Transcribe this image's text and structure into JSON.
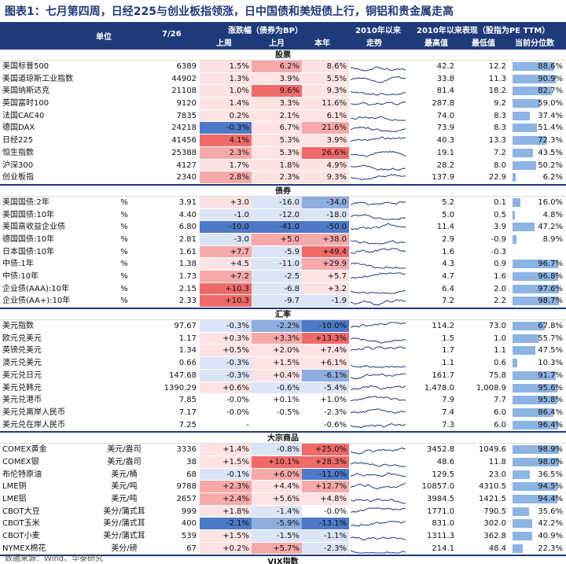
{
  "title": "图表1：七月第四周，日经225与创业板指领涨，日中国债和美短债上行，铜铝和贵金属走高",
  "header": {
    "unit": "单位",
    "date": "7/26",
    "change_group": "涨跌幅（债券为BP）",
    "week": "上周",
    "month": "上月",
    "ytd": "本年",
    "trend_group": "2010年以来",
    "trend": "走势",
    "perf_group": "2010年以来表现（股指为PE TTM）",
    "max": "最高值",
    "min": "最低值",
    "pct": "当前分位数"
  },
  "colors": {
    "header_bg": "#1f3a7a",
    "up_strong": "#f06a6a",
    "up_mid": "#f7a9a9",
    "up_light": "#fde3e3",
    "down_strong": "#4e79c7",
    "down_mid": "#8fadde",
    "down_light": "#dbe5f6",
    "pct_bar": "#8db4e2"
  },
  "sections": [
    {
      "name": "股票",
      "rows": [
        {
          "name": "美国标普500",
          "unit": "",
          "value": "6389",
          "week": "1.5%",
          "month": "6.2%",
          "ytd": "8.6%",
          "wc": "up_light",
          "mc": "up_mid",
          "yc": "up_light",
          "max": "42.2",
          "min": "12.2",
          "pct": "88.6%",
          "pv": 0.886
        },
        {
          "name": "美国道琼斯工业指数",
          "unit": "",
          "value": "44902",
          "week": "1.3%",
          "month": "3.9%",
          "ytd": "5.5%",
          "wc": "up_light",
          "mc": "up_light",
          "yc": "up_light",
          "max": "33.8",
          "min": "11.3",
          "pct": "90.9%",
          "pv": 0.909
        },
        {
          "name": "美国纳斯达克",
          "unit": "",
          "value": "21108",
          "week": "1.0%",
          "month": "9.6%",
          "ytd": "9.3%",
          "wc": "up_light",
          "mc": "up_strong",
          "yc": "up_light",
          "max": "81.4",
          "min": "18.2",
          "pct": "82.7%",
          "pv": 0.827
        },
        {
          "name": "英国富时100",
          "unit": "",
          "value": "9120",
          "week": "1.4%",
          "month": "3.3%",
          "ytd": "11.6%",
          "wc": "up_light",
          "mc": "up_light",
          "yc": "up_light",
          "max": "287.8",
          "min": "9.2",
          "pct": "59.0%",
          "pv": 0.59
        },
        {
          "name": "法国CAC40",
          "unit": "",
          "value": "7835",
          "week": "0.2%",
          "month": "2.1%",
          "ytd": "6.1%",
          "wc": "up_light",
          "mc": "up_light",
          "yc": "up_light",
          "max": "74.0",
          "min": "8.3",
          "pct": "37.4%",
          "pv": 0.374
        },
        {
          "name": "德国DAX",
          "unit": "",
          "value": "24218",
          "week": "-0.3%",
          "month": "6.7%",
          "ytd": "21.6%",
          "wc": "down_strong",
          "mc": "up_light",
          "yc": "up_mid",
          "max": "73.9",
          "min": "8.3",
          "pct": "51.4%",
          "pv": 0.514
        },
        {
          "name": "日经225",
          "unit": "",
          "value": "41456",
          "week": "4.1%",
          "month": "5.3%",
          "ytd": "3.9%",
          "wc": "up_strong",
          "mc": "up_light",
          "yc": "up_light",
          "max": "40.3",
          "min": "13.3",
          "pct": "72.3%",
          "pv": 0.723
        },
        {
          "name": "恒生指数",
          "unit": "",
          "value": "25388",
          "week": "2.3%",
          "month": "5.3%",
          "ytd": "26.6%",
          "wc": "up_mid",
          "mc": "up_light",
          "yc": "up_strong",
          "max": "19.1",
          "min": "7.2",
          "pct": "43.5%",
          "pv": 0.435
        },
        {
          "name": "沪深300",
          "unit": "",
          "value": "4127",
          "week": "1.7%",
          "month": "1.8%",
          "ytd": "4.9%",
          "wc": "up_light",
          "mc": "up_light",
          "yc": "up_light",
          "max": "28.2",
          "min": "8.0",
          "pct": "50.2%",
          "pv": 0.502
        },
        {
          "name": "创业板指",
          "unit": "",
          "value": "2340",
          "week": "2.8%",
          "month": "2.3%",
          "ytd": "9.3%",
          "wc": "up_mid",
          "mc": "up_light",
          "yc": "up_light",
          "max": "137.9",
          "min": "22.9",
          "pct": "6.2%",
          "pv": 0.062
        }
      ]
    },
    {
      "name": "债券",
      "rows": [
        {
          "name": "美国国债:2年",
          "unit": "%",
          "value": "3.91",
          "week": "+3.0",
          "month": "-16.0",
          "ytd": "-34.0",
          "wc": "up_light",
          "mc": "down_light",
          "yc": "down_mid",
          "max": "5.2",
          "min": "0.1",
          "pct": "16.0%",
          "pv": 0.16
        },
        {
          "name": "美国国债:10年",
          "unit": "%",
          "value": "4.40",
          "week": "-1.0",
          "month": "-12.0",
          "ytd": "-18.0",
          "wc": "down_light",
          "mc": "down_light",
          "yc": "down_light",
          "max": "5.0",
          "min": "0.5",
          "pct": "4.8%",
          "pv": 0.048
        },
        {
          "name": "美国高收益企业债",
          "unit": "%",
          "value": "6.80",
          "week": "-10.0",
          "month": "-41.0",
          "ytd": "-50.0",
          "wc": "down_strong",
          "mc": "down_strong",
          "yc": "down_strong",
          "max": "11.4",
          "min": "3.9",
          "pct": "47.2%",
          "pv": 0.472
        },
        {
          "name": "德国国债:10年",
          "unit": "%",
          "value": "2.81",
          "week": "-3.0",
          "month": "+5.0",
          "ytd": "+38.0",
          "wc": "down_light",
          "mc": "up_mid",
          "yc": "up_mid",
          "max": "2.9",
          "min": "-0.9",
          "pct": "8.9%",
          "pv": 0.089
        },
        {
          "name": "日本国债:10年",
          "unit": "%",
          "value": "1.61",
          "week": "+7.7",
          "month": "-5.9",
          "ytd": "+49.4",
          "wc": "up_mid",
          "mc": "down_light",
          "yc": "up_strong",
          "max": "1.6",
          "min": "-0.3",
          "pct": "",
          "pv": 0
        },
        {
          "name": "中债:1年",
          "unit": "%",
          "value": "1.38",
          "week": "+4.5",
          "month": "-11.0",
          "ytd": "+29.9",
          "wc": "up_light",
          "mc": "down_light",
          "yc": "up_mid",
          "max": "4.3",
          "min": "0.9",
          "pct": "96.7%",
          "pv": 0.967
        },
        {
          "name": "中债:10年",
          "unit": "%",
          "value": "1.73",
          "week": "+7.2",
          "month": "-2.5",
          "ytd": "+5.7",
          "wc": "up_mid",
          "mc": "down_light",
          "yc": "up_light",
          "max": "4.7",
          "min": "1.6",
          "pct": "96.8%",
          "pv": 0.968
        },
        {
          "name": "企业债(AAA):10年",
          "unit": "%",
          "value": "2.15",
          "week": "+10.3",
          "month": "-6.8",
          "ytd": "+3.2",
          "wc": "up_strong",
          "mc": "down_light",
          "yc": "up_light",
          "max": "6.4",
          "min": "2.0",
          "pct": "97.6%",
          "pv": 0.976
        },
        {
          "name": "企业债(AA+):10年",
          "unit": "%",
          "value": "2.33",
          "week": "+10.3",
          "month": "-9.7",
          "ytd": "-1.9",
          "wc": "up_strong",
          "mc": "down_light",
          "yc": "down_light",
          "max": "7.2",
          "min": "2.2",
          "pct": "98.7%",
          "pv": 0.987
        }
      ]
    },
    {
      "name": "汇率",
      "rows": [
        {
          "name": "美元指数",
          "unit": "",
          "value": "97.67",
          "week": "-0.3%",
          "month": "-2.2%",
          "ytd": "-10.0%",
          "wc": "down_light",
          "mc": "down_mid",
          "yc": "down_strong",
          "max": "114.2",
          "min": "73.0",
          "pct": "67.8%",
          "pv": 0.678
        },
        {
          "name": "欧元兑美元",
          "unit": "",
          "value": "1.17",
          "week": "+0.3%",
          "month": "+3.3%",
          "ytd": "+13.3%",
          "wc": "up_light",
          "mc": "up_mid",
          "yc": "up_strong",
          "max": "1.5",
          "min": "1.0",
          "pct": "55.7%",
          "pv": 0.557
        },
        {
          "name": "英镑兑美元",
          "unit": "",
          "value": "1.34",
          "week": "+0.5%",
          "month": "+2.0%",
          "ytd": "+7.4%",
          "wc": "up_light",
          "mc": "up_light",
          "yc": "up_light",
          "max": "1.7",
          "min": "1.1",
          "pct": "47.5%",
          "pv": 0.475
        },
        {
          "name": "澳元兑美元",
          "unit": "",
          "value": "0.66",
          "week": "-0.3%",
          "month": "+1.5%",
          "ytd": "+6.1%",
          "wc": "down_light",
          "mc": "up_light",
          "yc": "up_light",
          "max": "1.1",
          "min": "0.6",
          "pct": "10.3%",
          "pv": 0.103
        },
        {
          "name": "美元兑日元",
          "unit": "",
          "value": "147.68",
          "week": "-0.3%",
          "month": "+0.4%",
          "ytd": "-6.1%",
          "wc": "down_light",
          "mc": "up_light",
          "yc": "down_mid",
          "max": "161.7",
          "min": "75.8",
          "pct": "91.7%",
          "pv": 0.917
        },
        {
          "name": "美元兑韩元",
          "unit": "",
          "value": "1390.29",
          "week": "+0.6%",
          "month": "-0.6%",
          "ytd": "-5.4%",
          "wc": "up_light",
          "mc": "down_light",
          "yc": "down_light",
          "max": "1,478.0",
          "min": "1,008.9",
          "pct": "95.6%",
          "pv": 0.956
        },
        {
          "name": "美元兑港币",
          "unit": "",
          "value": "7.85",
          "week": "-0.0%",
          "month": "+0.1%",
          "ytd": "+1.0%",
          "wc": "none",
          "mc": "none",
          "yc": "none",
          "max": "7.9",
          "min": "7.7",
          "pct": "95.8%",
          "pv": 0.958
        },
        {
          "name": "美元兑离岸人民币",
          "unit": "",
          "value": "7.17",
          "week": "-0.0%",
          "month": "-0.5%",
          "ytd": "-2.3%",
          "wc": "none",
          "mc": "none",
          "yc": "none",
          "max": "7.4",
          "min": "6.0",
          "pct": "86.4%",
          "pv": 0.864
        },
        {
          "name": "美元兑在岸人民币",
          "unit": "",
          "value": "7.25",
          "week": "-",
          "month": "",
          "ytd": "-0.6%",
          "wc": "none",
          "mc": "none",
          "yc": "none",
          "max": "7.3",
          "min": "6.0",
          "pct": "96.4%",
          "pv": 0.964
        }
      ]
    },
    {
      "name": "大宗商品",
      "rows": [
        {
          "name": "COMEX黄金",
          "unit": "美元/盎司",
          "value": "3336",
          "week": "+1.4%",
          "month": "-0.8%",
          "ytd": "+25.0%",
          "wc": "up_light",
          "mc": "down_light",
          "yc": "up_strong",
          "max": "3452.8",
          "min": "1049.6",
          "pct": "98.9%",
          "pv": 0.989
        },
        {
          "name": "COMEX银",
          "unit": "美元/盎司",
          "value": "38",
          "week": "+1.5%",
          "month": "+10.1%",
          "ytd": "+28.3%",
          "wc": "up_light",
          "mc": "up_strong",
          "yc": "up_strong",
          "max": "48.6",
          "min": "11.8",
          "pct": "98.0%",
          "pv": 0.98
        },
        {
          "name": "布伦特原油",
          "unit": "美元/桶",
          "value": "68",
          "week": "-0.1%",
          "month": "+6.0%",
          "ytd": "-11.0%",
          "wc": "down_light",
          "mc": "up_mid",
          "yc": "down_strong",
          "max": "129.5",
          "min": "23.0",
          "pct": "36.5%",
          "pv": 0.365
        },
        {
          "name": "LME铜",
          "unit": "美元/吨",
          "value": "9788",
          "week": "+2.3%",
          "month": "+4.4%",
          "ytd": "+12.7%",
          "wc": "up_mid",
          "mc": "up_light",
          "yc": "up_mid",
          "max": "10857.0",
          "min": "4310.5",
          "pct": "94.5%",
          "pv": 0.945
        },
        {
          "name": "LME铝",
          "unit": "美元/吨",
          "value": "2657",
          "week": "+2.4%",
          "month": "+5.6%",
          "ytd": "+4.8%",
          "wc": "up_mid",
          "mc": "up_light",
          "yc": "up_light",
          "max": "3984.5",
          "min": "1421.5",
          "pct": "94.4%",
          "pv": 0.944
        },
        {
          "name": "CBOT大豆",
          "unit": "美分/蒲式耳",
          "value": "999",
          "week": "+1.8%",
          "month": "-1.4%",
          "ytd": "-0.0%",
          "wc": "up_light",
          "mc": "down_light",
          "yc": "none",
          "max": "1771.0",
          "min": "790.5",
          "pct": "35.6%",
          "pv": 0.356
        },
        {
          "name": "CBOT玉米",
          "unit": "美分/蒲式耳",
          "value": "400",
          "week": "-2.1%",
          "month": "-5.9%",
          "ytd": "-13.1%",
          "wc": "down_strong",
          "mc": "down_mid",
          "yc": "down_strong",
          "max": "831.0",
          "min": "302.0",
          "pct": "42.2%",
          "pv": 0.422
        },
        {
          "name": "CBOT小麦",
          "unit": "美分/蒲式耳",
          "value": "539",
          "week": "+1.5%",
          "month": "-1.5%",
          "ytd": "-1.1%",
          "wc": "up_light",
          "mc": "down_light",
          "yc": "down_light",
          "max": "1311.3",
          "min": "362.8",
          "pct": "40.9%",
          "pv": 0.409
        },
        {
          "name": "NYMEX棉花",
          "unit": "美分/磅",
          "value": "67",
          "week": "+0.2%",
          "month": "+5.7%",
          "ytd": "-2.3%",
          "wc": "up_light",
          "mc": "up_mid",
          "yc": "down_light",
          "max": "214.1",
          "min": "48.4",
          "pct": "22.3%",
          "pv": 0.223
        }
      ]
    },
    {
      "name": "VIX指数",
      "rows": [
        {
          "name": "VIX指数",
          "unit": "%",
          "value": "14.93",
          "week": "-9.0%",
          "month": "-24.8%",
          "ytd": "-13.9%",
          "wc": "down_light",
          "mc": "down_strong",
          "yc": "down_light",
          "max": "45,836.00",
          "min": "9.14",
          "pct": "36.1%",
          "pv": 0.361
        }
      ]
    }
  ],
  "source": "数据来源：Wind、华泰研究"
}
